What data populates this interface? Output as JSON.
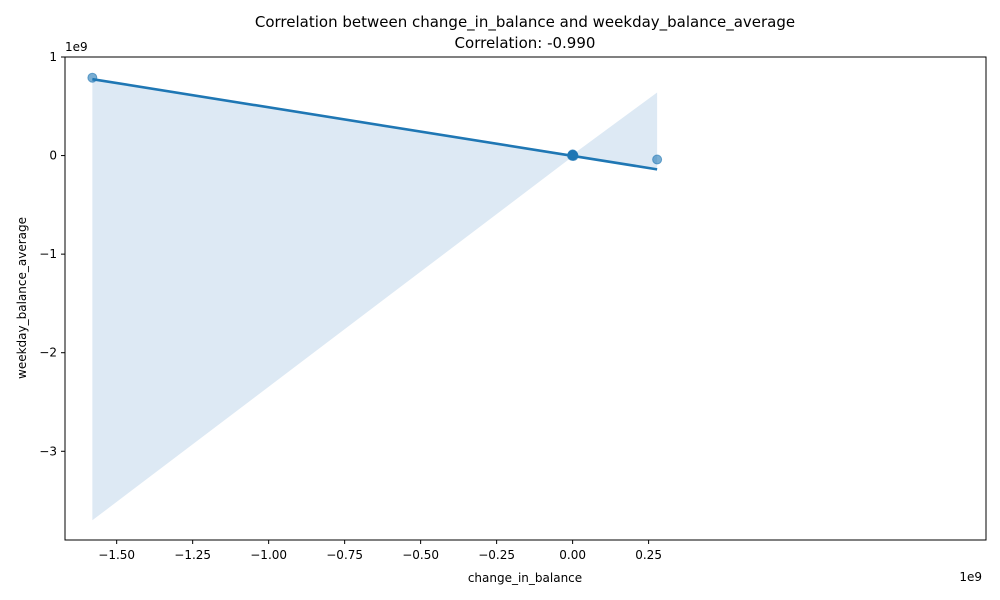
{
  "chart_data": {
    "type": "scatter",
    "title": "Correlation between change_in_balance and weekday_balance_average",
    "subtitle": "Correlation: -0.990",
    "xlabel": "change_in_balance",
    "ylabel": "weekday_balance_average",
    "x_offset_label": "1e9",
    "y_offset_label": "1e9",
    "x_scale": 1000000000,
    "y_scale": 1000000000,
    "xlim": [
      -1.67,
      1.36
    ],
    "ylim": [
      -3.9,
      1.0
    ],
    "x_ticks": [
      -1.5,
      -1.25,
      -1.0,
      -0.75,
      -0.5,
      -0.25,
      0.0,
      0.25
    ],
    "x_tick_labels": [
      "−1.50",
      "−1.25",
      "−1.00",
      "−0.75",
      "−0.50",
      "−0.25",
      "0.00",
      "0.25"
    ],
    "y_ticks": [
      1,
      0,
      -1,
      -2,
      -3
    ],
    "y_tick_labels": [
      "1",
      "0",
      "−1",
      "−2",
      "−3"
    ],
    "grid": false,
    "points": [
      {
        "x": -1.58,
        "y": 0.79
      },
      {
        "x": 0.278,
        "y": -0.04
      },
      {
        "x": 0.0,
        "y": 0.0
      },
      {
        "x": 0.002,
        "y": 0.003
      },
      {
        "x": -0.002,
        "y": -0.002
      },
      {
        "x": 0.001,
        "y": 0.008
      },
      {
        "x": -0.001,
        "y": 0.005
      },
      {
        "x": 0.003,
        "y": -0.004
      },
      {
        "x": 0.0,
        "y": 0.012
      }
    ],
    "regression_line": {
      "x": [
        -1.58,
        0.278
      ],
      "y": [
        0.775,
        -0.14
      ]
    },
    "confidence_band": {
      "x": [
        -1.58,
        0.0,
        0.278
      ],
      "upper": [
        0.775,
        0.01,
        0.64
      ],
      "lower": [
        -3.7,
        -0.01,
        -0.14
      ]
    },
    "colors": {
      "point": "#1f77b4",
      "line": "#1f77b4",
      "band": "#dde9f4"
    }
  }
}
